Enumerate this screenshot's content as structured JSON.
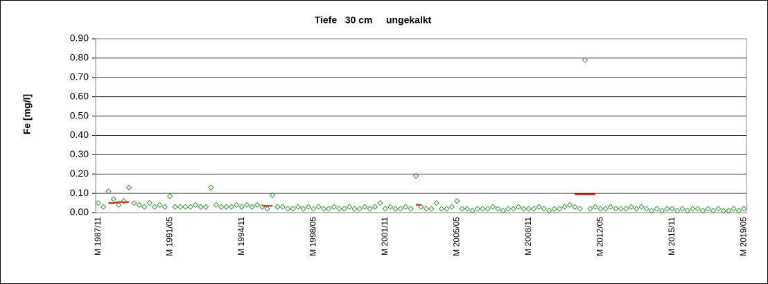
{
  "chart_data": {
    "type": "scatter",
    "title": "Tiefe   30 cm     ungekalkt",
    "y_label": "Fe [mg/l]",
    "categories": [
      "M 1987/11",
      null,
      null,
      null,
      null,
      null,
      null,
      null,
      null,
      null,
      null,
      null,
      null,
      null,
      "M 1991/05",
      null,
      null,
      null,
      null,
      null,
      null,
      null,
      null,
      null,
      null,
      null,
      null,
      null,
      "M 1994/11",
      null,
      null,
      null,
      null,
      null,
      null,
      null,
      null,
      null,
      null,
      null,
      null,
      null,
      "M 1998/05",
      null,
      null,
      null,
      null,
      null,
      null,
      null,
      null,
      null,
      null,
      null,
      null,
      null,
      "M 2001/11",
      null,
      null,
      null,
      null,
      null,
      null,
      null,
      null,
      null,
      null,
      null,
      null,
      null,
      "M 2005/05",
      null,
      null,
      null,
      null,
      null,
      null,
      null,
      null,
      null,
      null,
      null,
      null,
      null,
      "M 2008/11",
      null,
      null,
      null,
      null,
      null,
      null,
      null,
      null,
      null,
      null,
      null,
      null,
      null,
      "M 2012/05",
      null,
      null,
      null,
      null,
      null,
      null,
      null,
      null,
      null,
      null,
      null,
      null,
      null,
      "M 2015/11",
      null,
      null,
      null,
      null,
      null,
      null,
      null,
      null,
      null,
      null,
      null,
      null,
      null,
      "M 2019/05"
    ],
    "series": [
      {
        "kind": "marker",
        "color": "#2e9e2e",
        "values": [
          0.05,
          0.03,
          0.11,
          0.07,
          0.04,
          0.06,
          0.13,
          0.05,
          0.04,
          0.03,
          0.05,
          0.03,
          0.04,
          0.03,
          0.085,
          0.03,
          0.03,
          0.03,
          0.03,
          0.04,
          0.03,
          0.03,
          0.13,
          0.04,
          0.03,
          0.03,
          0.03,
          0.04,
          0.03,
          0.04,
          0.03,
          0.04,
          0.03,
          0.02,
          0.09,
          0.03,
          0.03,
          0.02,
          0.02,
          0.03,
          0.02,
          0.03,
          0.02,
          0.03,
          0.02,
          0.02,
          0.03,
          0.02,
          0.02,
          0.03,
          0.02,
          0.02,
          0.03,
          0.02,
          0.03,
          0.05,
          0.02,
          0.03,
          0.02,
          0.02,
          0.03,
          0.02,
          0.19,
          0.03,
          0.02,
          0.02,
          0.05,
          0.02,
          0.02,
          0.03,
          0.06,
          0.02,
          0.02,
          0.01,
          0.02,
          0.02,
          0.02,
          0.03,
          0.02,
          0.01,
          0.02,
          0.02,
          0.03,
          0.02,
          0.02,
          0.02,
          0.03,
          0.02,
          0.01,
          0.02,
          0.02,
          0.03,
          0.04,
          0.03,
          0.02,
          0.79,
          0.02,
          0.03,
          0.02,
          0.02,
          0.03,
          0.02,
          0.02,
          0.02,
          0.03,
          0.02,
          0.03,
          0.02,
          0.01,
          0.02,
          0.01,
          0.02,
          0.02,
          0.01,
          0.02,
          0.01,
          0.02,
          0.02,
          0.01,
          0.02,
          0.01,
          0.02,
          0.01,
          0.01,
          0.02,
          0.01,
          0.02
        ]
      },
      {
        "kind": "line",
        "color": "#ff0000",
        "values": [
          null,
          null,
          0.05,
          0.05,
          0.055,
          0.055,
          0.055,
          null,
          null,
          null,
          null,
          null,
          null,
          null,
          null,
          null,
          null,
          null,
          null,
          null,
          null,
          null,
          null,
          null,
          null,
          null,
          null,
          null,
          null,
          null,
          null,
          null,
          0.035,
          0.035,
          0.035,
          null,
          null,
          null,
          null,
          null,
          null,
          null,
          null,
          null,
          null,
          null,
          null,
          null,
          null,
          null,
          null,
          null,
          null,
          null,
          null,
          null,
          null,
          null,
          null,
          null,
          null,
          null,
          0.04,
          0.04,
          null,
          null,
          null,
          null,
          null,
          null,
          null,
          null,
          null,
          null,
          null,
          null,
          null,
          null,
          null,
          null,
          null,
          null,
          null,
          null,
          null,
          null,
          null,
          null,
          null,
          null,
          null,
          null,
          null,
          0.095,
          0.095,
          0.095,
          0.095,
          0.095,
          null,
          null,
          null,
          null,
          null,
          null,
          null,
          null,
          null,
          null,
          null,
          null,
          null,
          null,
          null,
          null,
          null,
          null,
          null,
          null,
          null,
          null,
          null,
          null,
          null,
          null,
          null,
          null,
          null
        ]
      }
    ],
    "ylim": [
      0,
      0.9
    ],
    "yticks": [
      {
        "value": 0,
        "label": "0.00"
      },
      {
        "value": 0.1,
        "label": "0.10"
      },
      {
        "value": 0.2,
        "label": "0.20"
      },
      {
        "value": 0.3,
        "label": "0.30"
      },
      {
        "value": 0.4,
        "label": "0.40"
      },
      {
        "value": 0.5,
        "label": "0.50"
      },
      {
        "value": 0.6,
        "label": "0.60"
      },
      {
        "value": 0.7,
        "label": "0.70"
      },
      {
        "value": 0.8,
        "label": "0.80"
      },
      {
        "value": 0.9,
        "label": "0.90"
      }
    ],
    "grid": true
  }
}
